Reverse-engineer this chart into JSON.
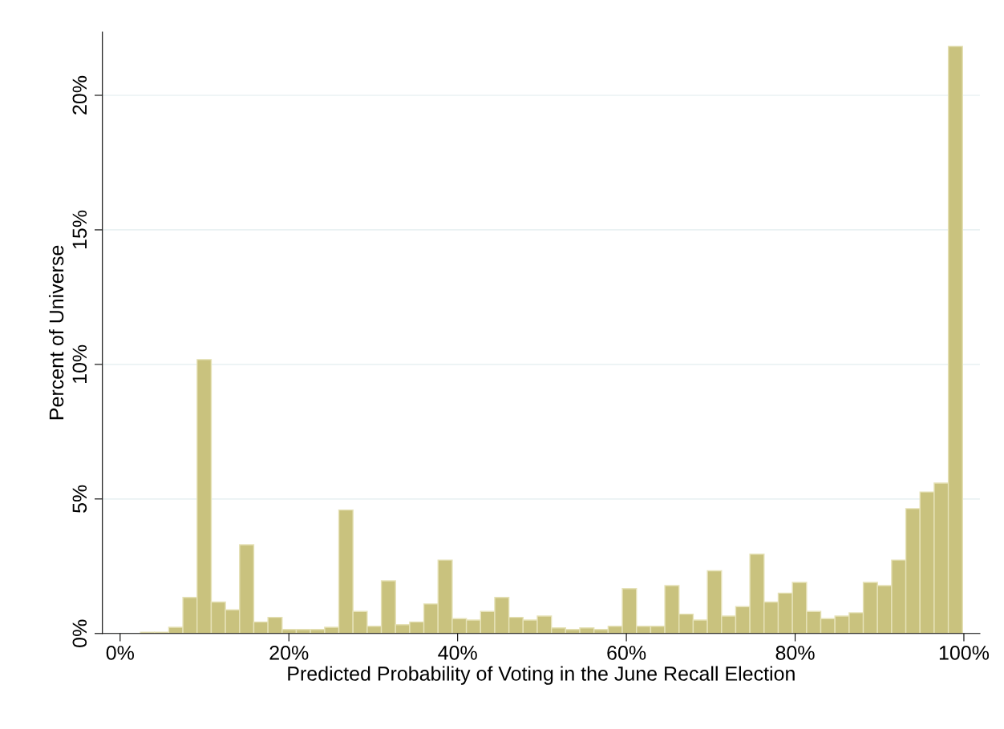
{
  "chart_data": {
    "type": "histogram",
    "xlabel": "Predicted Probability of Voting in the June Recall Election",
    "ylabel": "Percent of Universe",
    "bins": [
      2.4,
      4.08,
      5.76,
      7.44,
      9.12,
      10.8,
      12.48,
      14.16,
      15.84,
      17.52,
      19.2,
      20.88,
      22.56,
      24.24,
      25.92,
      27.6,
      29.28,
      30.96,
      32.64,
      34.32,
      36,
      37.68,
      39.36,
      41.04,
      42.72,
      44.4,
      46.08,
      47.76,
      49.44,
      51.12,
      52.8,
      54.48,
      56.16,
      57.84,
      59.52,
      61.2,
      62.88,
      64.56,
      66.24,
      67.92,
      69.6,
      71.28,
      72.96,
      74.64,
      76.32,
      78,
      79.68,
      81.36,
      83.04,
      84.72,
      86.4,
      88.08,
      89.76,
      91.44,
      93.12,
      94.8,
      96.48,
      98.16,
      99.84
    ],
    "values": [
      0.05,
      0.05,
      0.23,
      1.34,
      10.18,
      1.17,
      0.88,
      3.3,
      0.43,
      0.6,
      0.15,
      0.15,
      0.15,
      0.23,
      4.59,
      0.82,
      0.27,
      1.96,
      0.33,
      0.43,
      1.1,
      2.73,
      0.55,
      0.5,
      0.82,
      1.34,
      0.6,
      0.5,
      0.65,
      0.21,
      0.15,
      0.21,
      0.15,
      0.27,
      1.67,
      0.27,
      0.27,
      1.78,
      0.72,
      0.5,
      2.33,
      0.65,
      1.0,
      2.95,
      1.17,
      1.5,
      1.9,
      0.82,
      0.55,
      0.65,
      0.77,
      1.9,
      1.78,
      2.73,
      4.64,
      5.26,
      5.59,
      21.82
    ],
    "color": "#c9c27e",
    "xlim": [
      -2.1,
      101.9
    ],
    "ylim": [
      0,
      22.35
    ],
    "xticks": [
      {
        "value": 0,
        "label": "0%"
      },
      {
        "value": 20,
        "label": "20%"
      },
      {
        "value": 40,
        "label": "40%"
      },
      {
        "value": 60,
        "label": "60%"
      },
      {
        "value": 80,
        "label": "80%"
      },
      {
        "value": 100,
        "label": "100%"
      }
    ],
    "yticks": [
      {
        "value": 0,
        "label": "0%"
      },
      {
        "value": 5,
        "label": "5%"
      },
      {
        "value": 10,
        "label": "10%"
      },
      {
        "value": 15,
        "label": "15%"
      },
      {
        "value": 20,
        "label": "20%"
      }
    ],
    "grid": "y"
  }
}
